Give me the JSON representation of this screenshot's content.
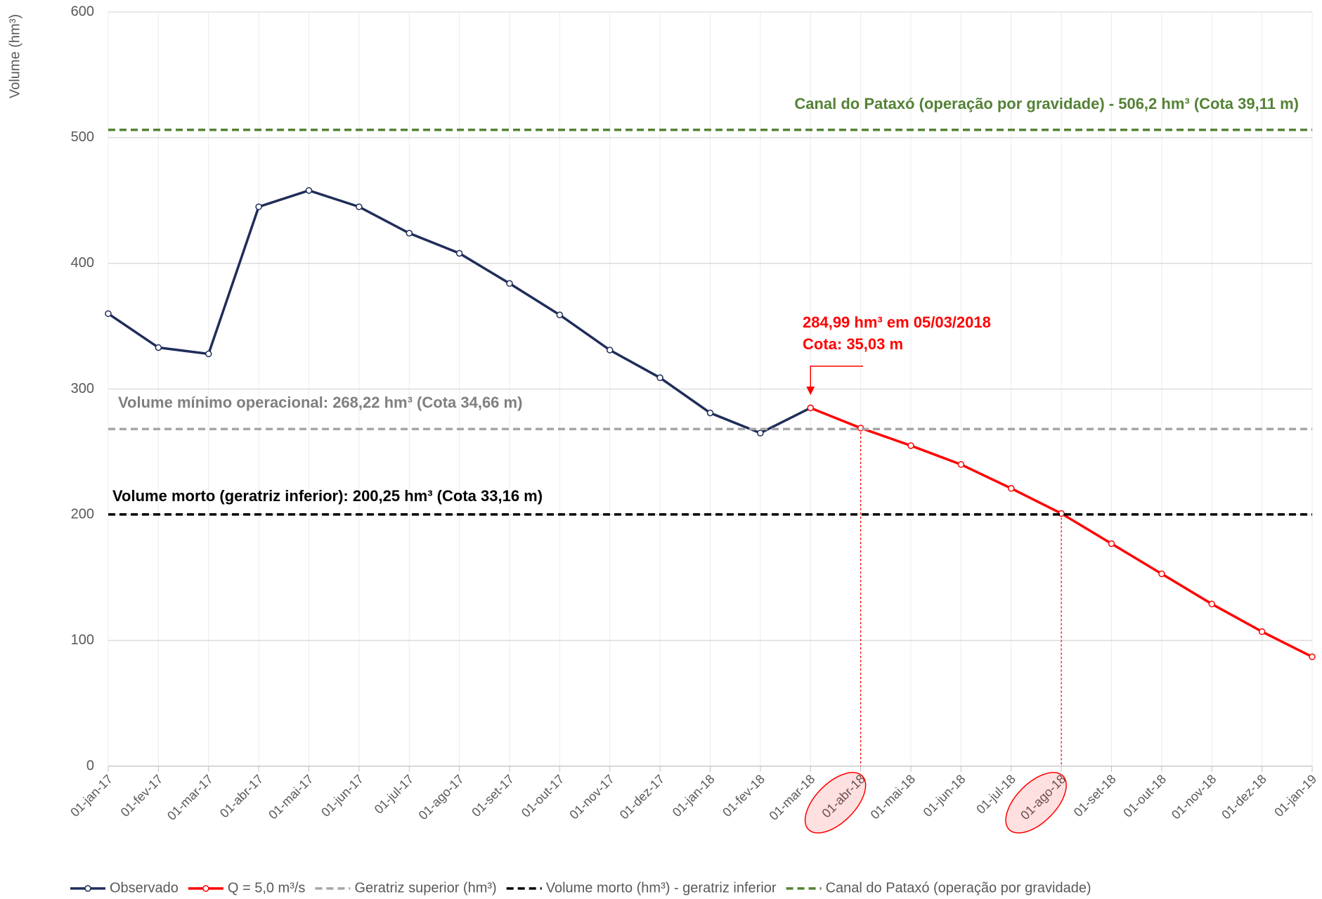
{
  "chart_data": {
    "type": "line",
    "y_label": "Volume (hm³)",
    "categories": [
      "01-jan-17",
      "01-fev-17",
      "01-mar-17",
      "01-abr-17",
      "01-mai-17",
      "01-jun-17",
      "01-jul-17",
      "01-ago-17",
      "01-set-17",
      "01-out-17",
      "01-nov-17",
      "01-dez-17",
      "01-jan-18",
      "01-fev-18",
      "01-mar-18",
      "01-abr-18",
      "01-mai-18",
      "01-jun-18",
      "01-jul-18",
      "01-ago-18",
      "01-set-18",
      "01-out-18",
      "01-nov-18",
      "01-dez-18",
      "01-jan-19"
    ],
    "series": [
      {
        "name": "Observado",
        "color": "#1f2d5a",
        "values": [
          360,
          333,
          328,
          445,
          458,
          445,
          424,
          408,
          384,
          359,
          331,
          309,
          281,
          265,
          285,
          null,
          null,
          null,
          null,
          null,
          null,
          null,
          null,
          null,
          null
        ]
      },
      {
        "name": "Q = 5,0 m³/s",
        "color": "#ff0000",
        "values": [
          null,
          null,
          null,
          null,
          null,
          null,
          null,
          null,
          null,
          null,
          null,
          null,
          null,
          null,
          285,
          269,
          255,
          240,
          221,
          201,
          177,
          153,
          129,
          107,
          87
        ]
      },
      {
        "name": "Geratriz superior (hm³)",
        "color": "#a6a6a6",
        "value": 268.22,
        "dashed": true
      },
      {
        "name": "Volume morto (hm³) - geratriz inferior",
        "color": "#000000",
        "value": 200.25,
        "dashed": true
      },
      {
        "name": "Canal do Pataxó (operação por gravidade)",
        "color": "#548235",
        "value": 506.2,
        "dashed": true
      }
    ],
    "annotations": [
      "Canal do Pataxó (operação por gravidade)  - 506,2 hm³ (Cota 39,11 m)",
      "Volume mínimo operacional:  268,22 hm³ (Cota  34,66 m)",
      "Volume morto (geratriz inferior):  200,25 hm³ (Cota 33,16 m)",
      "284,99 hm³ em 05/03/2018",
      "Cota: 35,03 m"
    ],
    "highlight_indices": [
      15,
      19
    ],
    "ylim": [
      0,
      600
    ],
    "yticks": [
      0,
      100,
      200,
      300,
      400,
      500,
      600
    ],
    "grid": true,
    "legend": "bottom"
  }
}
